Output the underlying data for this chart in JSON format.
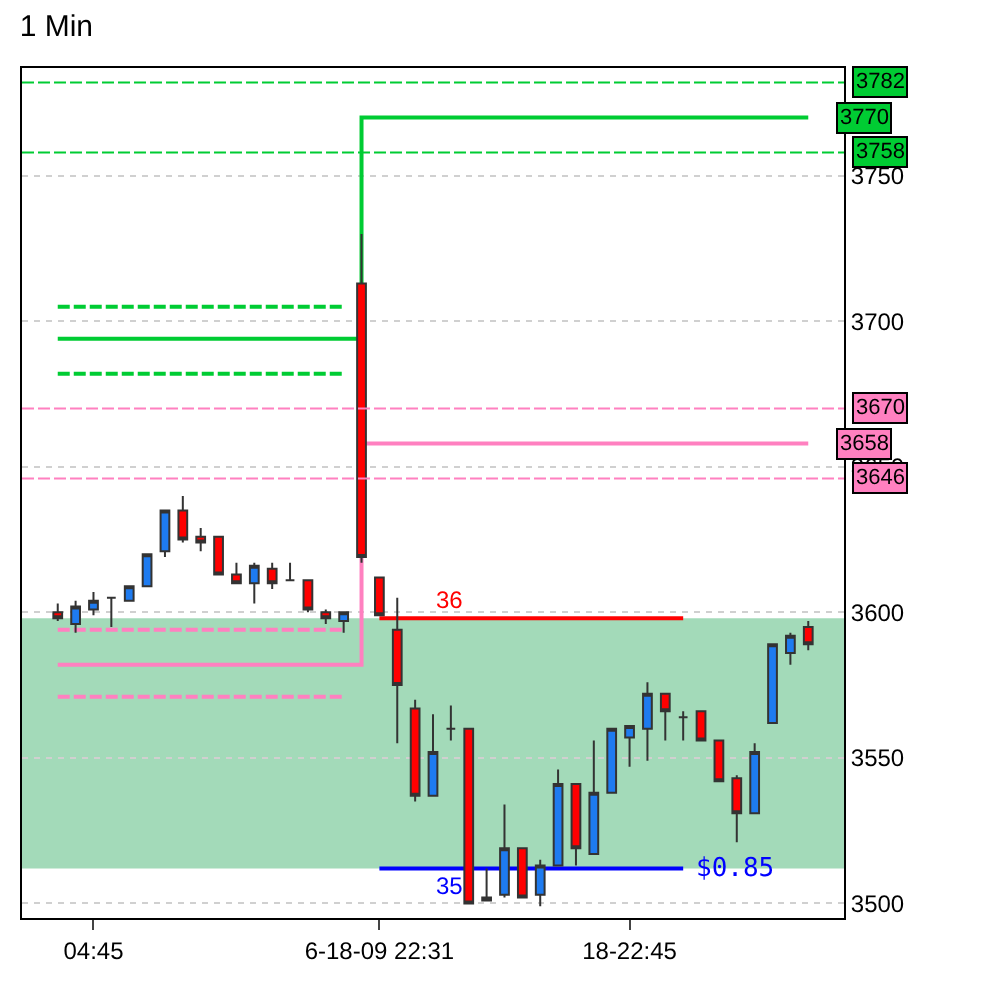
{
  "chart_data": {
    "type": "candlestick",
    "title": "1 Min",
    "categories": [
      null,
      null,
      "04:45",
      null,
      null,
      null,
      null,
      null,
      null,
      null,
      null,
      null,
      null,
      null,
      null,
      null,
      null,
      null,
      "6-18-09 22:31",
      null,
      null,
      null,
      null,
      null,
      null,
      null,
      null,
      null,
      null,
      null,
      null,
      null,
      "18-22:45",
      null,
      null,
      null,
      null,
      null,
      null,
      null,
      null,
      null,
      null
    ],
    "ohlc": [
      [
        3600,
        3603,
        3597,
        3598
      ],
      [
        3596,
        3604,
        3593,
        3602
      ],
      [
        3601,
        3607,
        3599,
        3604
      ],
      [
        3605,
        3605,
        3595,
        3605
      ],
      [
        3604,
        3609,
        3604,
        3609
      ],
      [
        3609,
        3620,
        3609,
        3620
      ],
      [
        3621,
        3635,
        3619,
        3635
      ],
      [
        3635,
        3640,
        3624,
        3625
      ],
      [
        3626,
        3629,
        3621,
        3624
      ],
      [
        3626,
        3626,
        3613,
        3613
      ],
      [
        3613,
        3617,
        3610,
        3610
      ],
      [
        3610,
        3617,
        3603,
        3616
      ],
      [
        3615,
        3617,
        3608,
        3610
      ],
      [
        3611,
        3617,
        3611,
        3611
      ],
      [
        3611,
        3611,
        3600,
        3601
      ],
      [
        3600,
        3601,
        3596,
        3598
      ],
      [
        3597,
        3600,
        3593,
        3600
      ],
      [
        3713,
        3730,
        3617,
        3619
      ],
      [
        3612,
        3612,
        3599,
        3599
      ],
      [
        3594,
        3605,
        3555,
        3575
      ],
      [
        3567,
        3570,
        3535,
        3537
      ],
      [
        3537,
        3565,
        3537,
        3552
      ],
      [
        3560,
        3568,
        3556,
        3560
      ],
      [
        3560,
        3560,
        3500,
        3500
      ],
      [
        3501,
        3512,
        3501,
        3502
      ],
      [
        3503,
        3534,
        3502,
        3519
      ],
      [
        3519,
        3519,
        3502,
        3502
      ],
      [
        3503,
        3515,
        3499,
        3513
      ],
      [
        3513,
        3546,
        3513,
        3541
      ],
      [
        3541,
        3541,
        3513,
        3519
      ],
      [
        3517,
        3556,
        3517,
        3538
      ],
      [
        3538,
        3560,
        3538,
        3560
      ],
      [
        3557,
        3561,
        3547,
        3561
      ],
      [
        3560,
        3576,
        3549,
        3572
      ],
      [
        3572,
        3572,
        3556,
        3566
      ],
      [
        3564,
        3566,
        3556,
        3564
      ],
      [
        3566,
        3566,
        3556,
        3556
      ],
      [
        3556,
        3556,
        3542,
        3542
      ],
      [
        3543,
        3544,
        3521,
        3531
      ],
      [
        3531,
        3555,
        3531,
        3552
      ],
      [
        3562,
        3589,
        3562,
        3589
      ],
      [
        3586,
        3593,
        3582,
        3592
      ],
      [
        3595,
        3597,
        3587,
        3589
      ]
    ],
    "series": [
      {
        "type": "step",
        "color": "#00cc33",
        "line_style": "solid",
        "values": [
          3694,
          3694,
          3694,
          3694,
          3694,
          3694,
          3694,
          3694,
          3694,
          3694,
          3694,
          3694,
          3694,
          3694,
          3694,
          3694,
          3694,
          3770,
          3770,
          3770,
          3770,
          3770,
          3770,
          3770,
          3770,
          3770,
          3770,
          3770,
          3770,
          3770,
          3770,
          3770,
          3770,
          3770,
          3770,
          3770,
          3770,
          3770,
          3770,
          3770,
          3770,
          3770,
          3770
        ],
        "value_labels": [
          null,
          null,
          null,
          null,
          null,
          null,
          null,
          null,
          null,
          null,
          null,
          null,
          null,
          null,
          null,
          null,
          null,
          null,
          null,
          null,
          null,
          null,
          null,
          null,
          null,
          null,
          null,
          null,
          null,
          null,
          null,
          null,
          null,
          null,
          null,
          null,
          null,
          null,
          null,
          null,
          null,
          null,
          "3770"
        ]
      },
      {
        "type": "step",
        "color": "#ff80c0",
        "line_style": "solid",
        "values": [
          3582,
          3582,
          3582,
          3582,
          3582,
          3582,
          3582,
          3582,
          3582,
          3582,
          3582,
          3582,
          3582,
          3582,
          3582,
          3582,
          3582,
          3658,
          3658,
          3658,
          3658,
          3658,
          3658,
          3658,
          3658,
          3658,
          3658,
          3658,
          3658,
          3658,
          3658,
          3658,
          3658,
          3658,
          3658,
          3658,
          3658,
          3658,
          3658,
          3658,
          3658,
          3658,
          3658
        ],
        "value_labels": [
          null,
          null,
          null,
          null,
          null,
          null,
          null,
          null,
          null,
          null,
          null,
          null,
          null,
          null,
          null,
          null,
          null,
          null,
          null,
          null,
          null,
          null,
          null,
          null,
          null,
          null,
          null,
          null,
          null,
          null,
          null,
          null,
          null,
          null,
          null,
          null,
          null,
          null,
          null,
          null,
          null,
          null,
          "3658"
        ]
      },
      {
        "type": "line",
        "color": "#00cc33",
        "line_style": "dashed",
        "values": [
          3705,
          3705,
          3705,
          3705,
          3705,
          3705,
          3705,
          3705,
          3705,
          3705,
          3705,
          3705,
          3705,
          3705,
          3705,
          3705,
          3705,
          null,
          null,
          null,
          null,
          null,
          null,
          null,
          null,
          null,
          null,
          null,
          null,
          null,
          null,
          null,
          null,
          null,
          null,
          null,
          null,
          null,
          null,
          null,
          null,
          null,
          null
        ]
      },
      {
        "type": "line",
        "color": "#00cc33",
        "line_style": "dashed",
        "values": [
          3682,
          3682,
          3682,
          3682,
          3682,
          3682,
          3682,
          3682,
          3682,
          3682,
          3682,
          3682,
          3682,
          3682,
          3682,
          3682,
          3682,
          null,
          null,
          null,
          null,
          null,
          null,
          null,
          null,
          null,
          null,
          null,
          null,
          null,
          null,
          null,
          null,
          null,
          null,
          null,
          null,
          null,
          null,
          null,
          null,
          null,
          null
        ]
      },
      {
        "type": "line",
        "color": "#ff80c0",
        "line_style": "dashed",
        "values": [
          3594,
          3594,
          3594,
          3594,
          3594,
          3594,
          3594,
          3594,
          3594,
          3594,
          3594,
          3594,
          3594,
          3594,
          3594,
          3594,
          3594,
          null,
          null,
          null,
          null,
          null,
          null,
          null,
          null,
          null,
          null,
          null,
          null,
          null,
          null,
          null,
          null,
          null,
          null,
          null,
          null,
          null,
          null,
          null,
          null,
          null,
          null
        ]
      },
      {
        "type": "line",
        "color": "#ff80c0",
        "line_style": "dashed",
        "values": [
          3571,
          3571,
          3571,
          3571,
          3571,
          3571,
          3571,
          3571,
          3571,
          3571,
          3571,
          3571,
          3571,
          3571,
          3571,
          3571,
          3571,
          null,
          null,
          null,
          null,
          null,
          null,
          null,
          null,
          null,
          null,
          null,
          null,
          null,
          null,
          null,
          null,
          null,
          null,
          null,
          null,
          null,
          null,
          null,
          null,
          null,
          null
        ]
      },
      {
        "type": "line",
        "name": "36",
        "color": "#ff0000",
        "line_style": "solid",
        "values": [
          null,
          null,
          null,
          null,
          null,
          null,
          null,
          null,
          null,
          null,
          null,
          null,
          null,
          null,
          null,
          null,
          null,
          null,
          3598,
          3598,
          3598,
          3598,
          3598,
          3598,
          3598,
          3598,
          3598,
          3598,
          3598,
          3598,
          3598,
          3598,
          3598,
          3598,
          3598,
          3598,
          null,
          null,
          null,
          null,
          null,
          null,
          null
        ]
      },
      {
        "type": "line",
        "name": "35",
        "color": "#0000ff",
        "line_style": "solid",
        "values": [
          null,
          null,
          null,
          null,
          null,
          null,
          null,
          null,
          null,
          null,
          null,
          null,
          null,
          null,
          null,
          null,
          null,
          null,
          3512,
          3512,
          3512,
          3512,
          3512,
          3512,
          3512,
          3512,
          3512,
          3512,
          3512,
          3512,
          3512,
          3512,
          3512,
          3512,
          3512,
          3512,
          null,
          null,
          null,
          null,
          null,
          null,
          null
        ]
      }
    ],
    "ref_lines": [
      {
        "axis": "y",
        "value": 3782,
        "label": "3782",
        "color": "#00cc33",
        "line_style": "dashed"
      },
      {
        "axis": "y",
        "value": 3758,
        "label": "3758",
        "color": "#00cc33",
        "line_style": "dashed"
      },
      {
        "axis": "y",
        "value": 3670,
        "label": "3670",
        "color": "#ff80c0",
        "line_style": "dashed"
      },
      {
        "axis": "y",
        "value": 3646,
        "label": "3646",
        "color": "#ff80c0",
        "line_style": "dashed"
      }
    ],
    "bands": [
      {
        "axis": "y",
        "from": 3512,
        "to": 3598,
        "color": "#66c28a"
      }
    ],
    "annotations": [
      "$0.85"
    ],
    "ylim": [
      3495,
      3787
    ],
    "yticks": [
      3500,
      3550,
      3600,
      3650,
      3700,
      3750
    ],
    "grid": "y"
  }
}
